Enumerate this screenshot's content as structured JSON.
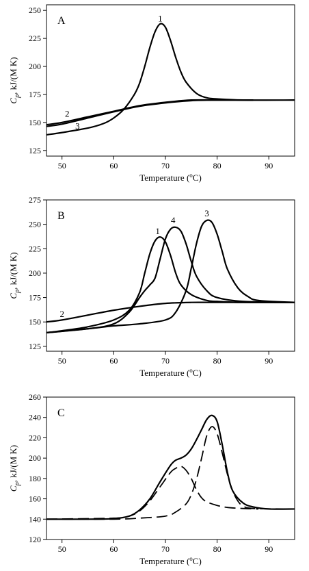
{
  "chart_data": [
    {
      "type": "line",
      "panel_label": "A",
      "xlabel_text": "Temperature (",
      "xlabel_sup": "o",
      "xlabel_unit": "C)",
      "ylabel_c": "C",
      "ylabel_sub": "p",
      "ylabel_rest": ", kJ/(M K)",
      "xlim": [
        47,
        95
      ],
      "ylim": [
        120,
        255
      ],
      "xticks": [
        50,
        60,
        70,
        80,
        90
      ],
      "yticks": [
        125,
        150,
        175,
        200,
        225,
        250
      ],
      "series": [
        {
          "label": "1",
          "label_at": [
            69,
            240
          ],
          "style": "solid",
          "x": [
            47,
            50,
            55,
            58,
            60,
            62,
            64,
            65,
            66,
            67,
            68,
            69,
            70,
            71,
            72,
            73,
            74,
            76,
            78,
            80,
            85,
            95
          ],
          "y": [
            139,
            141,
            145,
            149,
            154,
            162,
            175,
            185,
            200,
            217,
            231,
            238,
            235,
            223,
            208,
            195,
            186,
            176,
            172,
            171,
            170,
            170
          ]
        },
        {
          "label": "2",
          "label_at": [
            51,
            155
          ],
          "style": "solid",
          "x": [
            47,
            50,
            55,
            60,
            65,
            70,
            75,
            80,
            87
          ],
          "y": [
            148,
            150,
            155,
            160,
            165,
            168,
            170,
            170,
            170
          ]
        },
        {
          "label": "3",
          "label_at": [
            53,
            144
          ],
          "style": "solid",
          "x": [
            47,
            50,
            55,
            60,
            65,
            70,
            75,
            80,
            87
          ],
          "y": [
            146.5,
            148.5,
            154,
            159.5,
            164.5,
            167.5,
            169.5,
            170,
            170
          ]
        }
      ]
    },
    {
      "type": "line",
      "panel_label": "B",
      "xlabel_text": "Temperature (",
      "xlabel_sup": "o",
      "xlabel_unit": "C)",
      "ylabel_c": "C",
      "ylabel_sub": "p",
      "ylabel_rest": ", kJ/(M K)",
      "xlim": [
        47,
        95
      ],
      "ylim": [
        120,
        275
      ],
      "xticks": [
        50,
        60,
        70,
        80,
        90
      ],
      "yticks": [
        125,
        150,
        175,
        200,
        225,
        250,
        275
      ],
      "series": [
        {
          "label": "1",
          "label_at": [
            68.5,
            240
          ],
          "style": "solid",
          "x": [
            47,
            50,
            55,
            60,
            63,
            65,
            66,
            67,
            68,
            69,
            70,
            71,
            72,
            73,
            75,
            78,
            80,
            85,
            95
          ],
          "y": [
            139,
            141,
            145,
            152,
            162,
            180,
            200,
            220,
            233,
            237,
            232,
            218,
            200,
            188,
            178,
            172,
            171,
            170,
            170
          ]
        },
        {
          "label": "2",
          "label_at": [
            50,
            155
          ],
          "style": "solid",
          "x": [
            47,
            50,
            55,
            60,
            65,
            70,
            75,
            80,
            95
          ],
          "y": [
            150,
            152,
            157,
            162,
            166,
            169,
            170,
            170,
            170
          ]
        },
        {
          "label": "3",
          "label_at": [
            78,
            258
          ],
          "style": "solid",
          "x": [
            47,
            55,
            60,
            65,
            70,
            72,
            74,
            75,
            76,
            77,
            78,
            79,
            80,
            81,
            82,
            84,
            86,
            88,
            95
          ],
          "y": [
            139,
            143,
            146,
            148,
            152,
            160,
            182,
            205,
            230,
            248,
            254,
            252,
            240,
            222,
            204,
            185,
            176,
            172,
            170
          ]
        },
        {
          "label": "4",
          "label_at": [
            71.5,
            251
          ],
          "style": "solid",
          "x": [
            47,
            55,
            60,
            63,
            65,
            66,
            67,
            68,
            69,
            70,
            71,
            72,
            73,
            74,
            75,
            76,
            78,
            80,
            85,
            95
          ],
          "y": [
            139,
            143,
            148,
            160,
            175,
            182,
            188,
            195,
            215,
            235,
            245,
            247,
            243,
            230,
            212,
            197,
            182,
            175,
            171,
            170
          ]
        }
      ]
    },
    {
      "type": "line",
      "panel_label": "C",
      "xlabel_text": "Temperature (",
      "xlabel_sup": "o",
      "xlabel_unit": "C)",
      "ylabel_c": "C",
      "ylabel_sub": "p",
      "ylabel_rest": ", kJ/(M K)",
      "xlim": [
        47,
        95
      ],
      "ylim": [
        120,
        260
      ],
      "xticks": [
        50,
        60,
        70,
        80,
        90
      ],
      "yticks": [
        120,
        140,
        160,
        180,
        200,
        220,
        240,
        260
      ],
      "series": [
        {
          "style": "solid",
          "x": [
            47,
            55,
            60,
            63,
            65,
            67,
            69,
            71,
            72,
            73,
            74,
            75,
            76,
            77,
            78,
            79,
            80,
            81,
            82,
            83,
            85,
            87,
            90,
            95
          ],
          "y": [
            140,
            140,
            140.5,
            143,
            149,
            160,
            177,
            193,
            198,
            200,
            203,
            209,
            218,
            228,
            238,
            242,
            236,
            213,
            186,
            168,
            156,
            152,
            150,
            150
          ]
        },
        {
          "style": "dashed",
          "x": [
            47,
            60,
            63,
            65,
            67,
            69,
            71,
            72,
            73,
            74,
            75,
            76,
            77,
            78,
            80,
            82,
            85,
            88
          ],
          "y": [
            140,
            141,
            143,
            148,
            158,
            172,
            186,
            190,
            192,
            188,
            180,
            169,
            161,
            157,
            153.5,
            151.5,
            150.5,
            150
          ]
        },
        {
          "style": "dashed",
          "x": [
            47,
            60,
            65,
            70,
            72,
            74,
            75,
            76,
            77,
            78,
            79,
            80,
            81,
            82,
            83,
            84,
            85,
            87,
            95
          ],
          "y": [
            140,
            140,
            141,
            143,
            147,
            155,
            164,
            179,
            200,
            222,
            231,
            224,
            205,
            184,
            168,
            158,
            153,
            150.5,
            150
          ]
        }
      ]
    }
  ]
}
